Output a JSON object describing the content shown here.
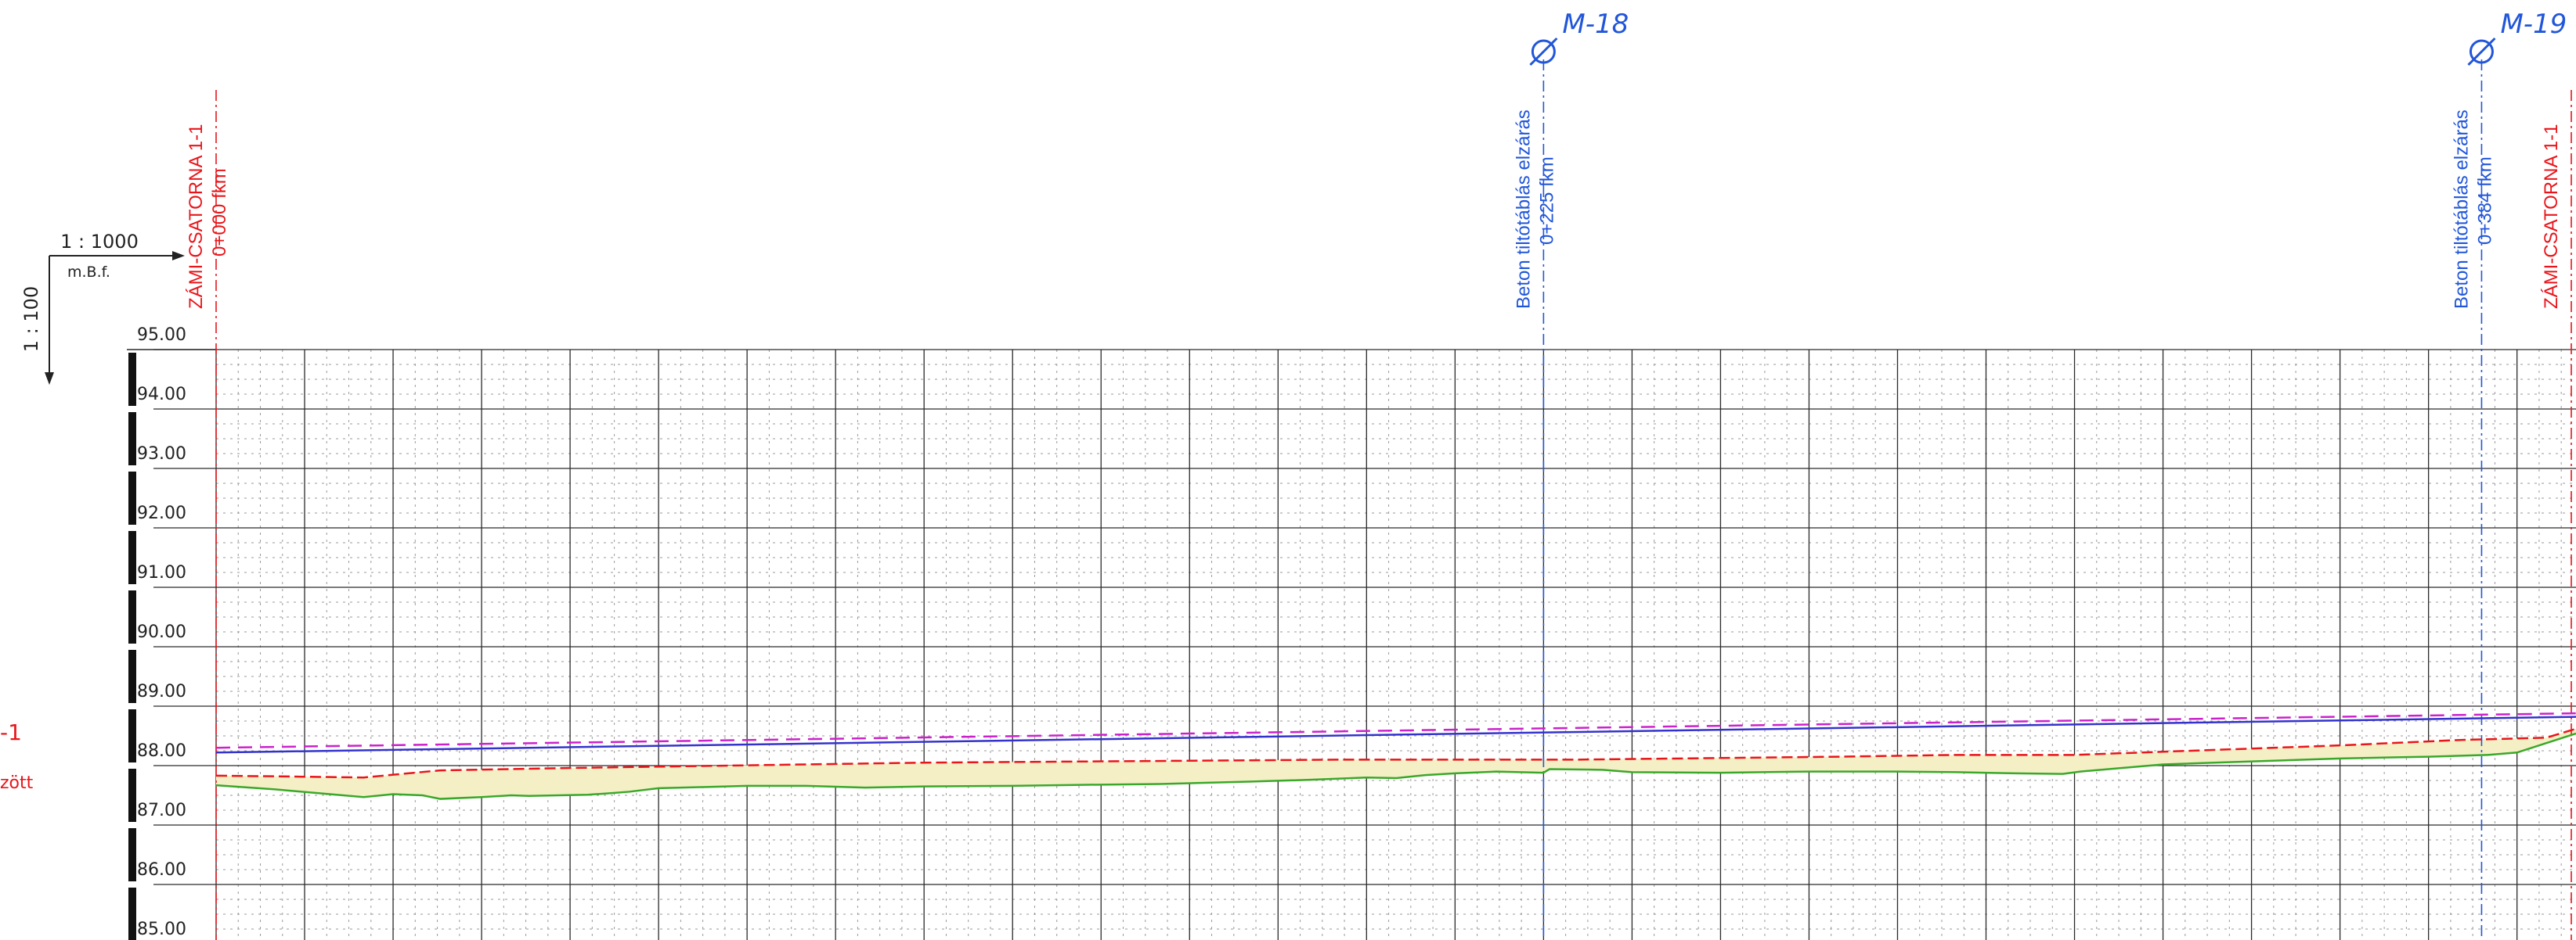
{
  "scale": {
    "horizontal": "1 : 1000",
    "vertical": "1 : 100",
    "datum": "m.B.f."
  },
  "elevation_axis": {
    "min": 85.0,
    "max": 95.0,
    "step": 1.0,
    "labels": [
      "95.00",
      "94.00",
      "93.00",
      "92.00",
      "91.00",
      "90.00",
      "89.00",
      "88.00",
      "87.00",
      "86.00",
      "85.00"
    ]
  },
  "left_cut_text": [
    "-1",
    "zött"
  ],
  "sections": [
    {
      "station": 0,
      "name": "ZÁMI-CSATORNA 1-1",
      "label": "0+000 fkm",
      "color": "#e8161b"
    },
    {
      "station": 225,
      "name": "Beton tiltótáblás elzárás",
      "label": "0+225 fkm",
      "marker": "M-18",
      "color": "#2156d9"
    },
    {
      "station": 384,
      "name": "Beton tiltótáblás elzárás",
      "label": "0+384 fkm",
      "marker": "M-19",
      "color": "#2156d9"
    },
    {
      "station": 400,
      "name": "ZÁMI-CSATORNA 1-1",
      "color": "#e8161b"
    }
  ],
  "colors": {
    "grid_major": "#2a2a2a",
    "grid_minor": "#9a9a9a",
    "ground_line": "#3aa82a",
    "design_line": "#e8161b",
    "water_line": "#3333cc",
    "water_dashed": "#cc22cc",
    "fill": "#f5efc6",
    "station_red": "#e8161b",
    "station_blue": "#2156d9"
  },
  "chart_data": {
    "type": "line",
    "x_range_fkm": [
      0,
      400
    ],
    "y_range_mbf": [
      85.0,
      95.0
    ],
    "grid": true,
    "series": [
      {
        "key": "water_dashed",
        "x": [
          0,
          400
        ],
        "y": [
          88.3,
          88.88
        ]
      },
      {
        "key": "water",
        "x": [
          0,
          400
        ],
        "y": [
          88.22,
          88.82
        ]
      },
      {
        "key": "design",
        "x": [
          0,
          10,
          25,
          38,
          60,
          120,
          190,
          230,
          275,
          295,
          315,
          360,
          380,
          395,
          400
        ],
        "y": [
          87.83,
          87.82,
          87.8,
          87.92,
          87.96,
          88.05,
          88.1,
          88.1,
          88.15,
          88.18,
          88.18,
          88.34,
          88.43,
          88.47,
          88.62
        ]
      },
      {
        "key": "ground",
        "x": [
          0,
          10,
          25,
          30,
          35,
          38,
          45,
          50,
          53,
          63,
          66,
          70,
          75,
          83,
          90,
          100,
          110,
          120,
          135,
          150,
          160,
          175,
          185,
          195,
          200,
          205,
          210,
          217,
          225,
          226,
          235,
          240,
          255,
          270,
          285,
          295,
          305,
          313,
          316,
          330,
          360,
          375,
          385,
          390,
          400
        ],
        "y": [
          87.67,
          87.6,
          87.47,
          87.52,
          87.5,
          87.44,
          87.47,
          87.5,
          87.49,
          87.51,
          87.53,
          87.56,
          87.62,
          87.64,
          87.66,
          87.66,
          87.63,
          87.65,
          87.66,
          87.68,
          87.69,
          87.73,
          87.76,
          87.8,
          87.79,
          87.84,
          87.87,
          87.9,
          87.88,
          87.94,
          87.93,
          87.89,
          87.88,
          87.9,
          87.9,
          87.89,
          87.87,
          87.86,
          87.9,
          88.02,
          88.12,
          88.15,
          88.18,
          88.22,
          88.54
        ]
      }
    ]
  }
}
